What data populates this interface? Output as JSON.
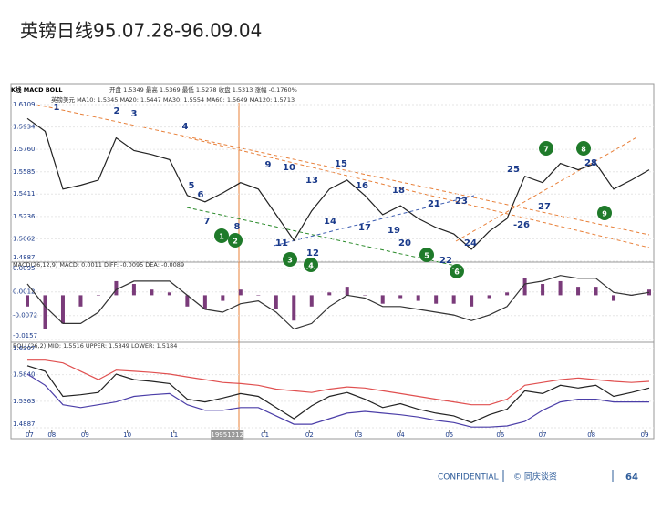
{
  "title": "英镑日线95.07.28-96.09.04",
  "chart_data": [
    {
      "type": "line",
      "header": [
        "K线 MACD BOLL",
        "开盘 1.5349 最高 1.5369 最低 1.5278 收盘 1.5313 涨幅 -0.1760%",
        "英镑美元 MA10: 1.5345 MA20: 1.5447 MA30: 1.5554 MA60: 1.5649 MA120: 1.5713"
      ],
      "xlim": [
        0,
        280
      ],
      "ylim": [
        1.4887,
        1.6109
      ],
      "yticks": [
        {
          "value": 1.6109,
          "label": "1.6109"
        },
        {
          "value": 1.5934,
          "label": "1.5934"
        },
        {
          "value": 1.576,
          "label": "1.5760"
        },
        {
          "value": 1.5585,
          "label": "1.5585"
        },
        {
          "value": 1.5411,
          "label": "1.5411"
        },
        {
          "value": 1.5236,
          "label": "1.5236"
        },
        {
          "value": 1.5062,
          "label": "1.5062"
        },
        {
          "value": 1.4887,
          "label": "1.4887"
        }
      ],
      "x": [
        0,
        8,
        16,
        24,
        32,
        40,
        48,
        56,
        64,
        72,
        80,
        88,
        96,
        104,
        112,
        120,
        128,
        136,
        144,
        152,
        160,
        168,
        176,
        184,
        192,
        200,
        208,
        216,
        224,
        232,
        240,
        248,
        256,
        264,
        272,
        280
      ],
      "series": [
        {
          "type": "line",
          "color": "#222222",
          "values": [
            1.6,
            1.59,
            1.545,
            1.548,
            1.552,
            1.585,
            1.575,
            1.572,
            1.568,
            1.54,
            1.535,
            1.542,
            1.55,
            1.545,
            1.525,
            1.505,
            1.528,
            1.545,
            1.552,
            1.54,
            1.525,
            1.532,
            1.522,
            1.515,
            1.51,
            1.498,
            1.512,
            1.522,
            1.555,
            1.55,
            1.565,
            1.56,
            1.565,
            1.545,
            1.552,
            1.56
          ]
        }
      ],
      "annotations": [
        "1",
        "2",
        "3",
        "4",
        "5",
        "6",
        "7",
        "8",
        "9",
        "10",
        "11",
        "12",
        "13",
        "14",
        "15",
        "16",
        "17",
        "18",
        "19",
        "20",
        "21",
        "22",
        "23",
        "24",
        "25",
        "-26",
        "27",
        "28"
      ],
      "markers": [
        "1",
        "2",
        "3",
        "4",
        "5",
        "6",
        "7",
        "8",
        "9"
      ]
    },
    {
      "type": "bar",
      "header": [
        "MACD(26,12,9) MACD: 0.0011 DIFF: -0.0095 DEA: -0.0089"
      ],
      "xlim": [
        0,
        280
      ],
      "ylim": [
        -0.0157,
        0.0095
      ],
      "yticks": [
        0.0095,
        0.0012,
        -0.0072,
        -0.0157
      ],
      "x": [
        0,
        8,
        16,
        24,
        32,
        40,
        48,
        56,
        64,
        72,
        80,
        88,
        96,
        104,
        112,
        120,
        128,
        136,
        144,
        152,
        160,
        168,
        176,
        184,
        192,
        200,
        208,
        216,
        224,
        232,
        240,
        248,
        256,
        264,
        272,
        280
      ],
      "series": [
        {
          "type": "bar",
          "color": "#7a3b7a",
          "values": [
            -0.004,
            -0.012,
            -0.01,
            -0.004,
            0,
            0.005,
            0.004,
            0.002,
            0.001,
            -0.004,
            -0.005,
            -0.002,
            0.002,
            0,
            -0.005,
            -0.009,
            -0.004,
            0.001,
            0.003,
            0,
            -0.003,
            -0.001,
            -0.002,
            -0.003,
            -0.003,
            -0.004,
            -0.001,
            0.001,
            0.006,
            0.004,
            0.005,
            0.003,
            0.003,
            -0.002,
            0,
            0.002
          ]
        },
        {
          "type": "line",
          "color": "#333333",
          "values": [
            0.004,
            -0.004,
            -0.01,
            -0.01,
            -0.006,
            0.002,
            0.005,
            0.005,
            0.005,
            0,
            -0.005,
            -0.006,
            -0.003,
            -0.002,
            -0.006,
            -0.012,
            -0.01,
            -0.004,
            0,
            -0.001,
            -0.004,
            -0.004,
            -0.005,
            -0.006,
            -0.007,
            -0.009,
            -0.007,
            -0.004,
            0.004,
            0.005,
            0.007,
            0.006,
            0.006,
            0.001,
            0,
            0.001
          ]
        }
      ]
    },
    {
      "type": "line",
      "header": [
        "BOLL(26,2) MID: 1.5516 UPPER: 1.5849 LOWER: 1.5184"
      ],
      "xlim": [
        0,
        280
      ],
      "ylim": [
        1.4887,
        1.6307
      ],
      "yticks": [
        {
          "value": 1.6307,
          "label": "1.6307"
        },
        {
          "value": 1.584,
          "label": "1.5840"
        },
        1.5363,
        1.4887
      ],
      "xticks": [
        {
          "value": 1,
          "label": "07"
        },
        {
          "value": 11,
          "label": "08"
        },
        {
          "value": 26,
          "label": "09"
        },
        {
          "value": 45,
          "label": "10"
        },
        {
          "value": 66,
          "label": "11"
        },
        {
          "value": 90,
          "label": "19951212"
        },
        {
          "value": 107,
          "label": "01"
        },
        {
          "value": 127,
          "label": "02"
        },
        {
          "value": 149,
          "label": "03"
        },
        {
          "value": 168,
          "label": "04"
        },
        {
          "value": 190,
          "label": "05"
        },
        {
          "value": 213,
          "label": "06"
        },
        {
          "value": 232,
          "label": "07"
        },
        {
          "value": 254,
          "label": "08"
        },
        {
          "value": 278,
          "label": "09"
        }
      ],
      "x": [
        0,
        8,
        16,
        24,
        32,
        40,
        48,
        56,
        64,
        72,
        80,
        88,
        96,
        104,
        112,
        120,
        128,
        136,
        144,
        152,
        160,
        168,
        176,
        184,
        192,
        200,
        208,
        216,
        224,
        232,
        240,
        248,
        256,
        264,
        272,
        280
      ],
      "series": [
        {
          "type": "line",
          "color": "#e05050",
          "values": [
            1.61,
            1.61,
            1.605,
            1.59,
            1.575,
            1.592,
            1.59,
            1.588,
            1.585,
            1.58,
            1.575,
            1.57,
            1.568,
            1.565,
            1.558,
            1.555,
            1.552,
            1.558,
            1.562,
            1.56,
            1.555,
            1.55,
            1.545,
            1.54,
            1.535,
            1.53,
            1.53,
            1.54,
            1.565,
            1.57,
            1.575,
            1.578,
            1.575,
            1.572,
            1.57,
            1.572
          ]
        },
        {
          "type": "line",
          "color": "#4b3ea8",
          "values": [
            1.585,
            1.565,
            1.53,
            1.525,
            1.53,
            1.535,
            1.545,
            1.548,
            1.55,
            1.53,
            1.52,
            1.52,
            1.525,
            1.525,
            1.51,
            1.495,
            1.495,
            1.505,
            1.515,
            1.518,
            1.515,
            1.512,
            1.508,
            1.502,
            1.498,
            1.49,
            1.49,
            1.492,
            1.5,
            1.52,
            1.535,
            1.54,
            1.54,
            1.535,
            1.535,
            1.535
          ]
        },
        {
          "type": "line",
          "color": "#222222",
          "values": [
            1.6,
            1.59,
            1.545,
            1.548,
            1.552,
            1.585,
            1.575,
            1.572,
            1.568,
            1.54,
            1.535,
            1.542,
            1.55,
            1.545,
            1.525,
            1.505,
            1.528,
            1.545,
            1.552,
            1.54,
            1.525,
            1.532,
            1.522,
            1.515,
            1.51,
            1.498,
            1.512,
            1.522,
            1.555,
            1.55,
            1.565,
            1.56,
            1.565,
            1.545,
            1.552,
            1.56
          ]
        }
      ]
    }
  ],
  "footer": {
    "confidential": "CONFIDENTIAL",
    "source": "© 同庆谈资",
    "page": "64"
  }
}
